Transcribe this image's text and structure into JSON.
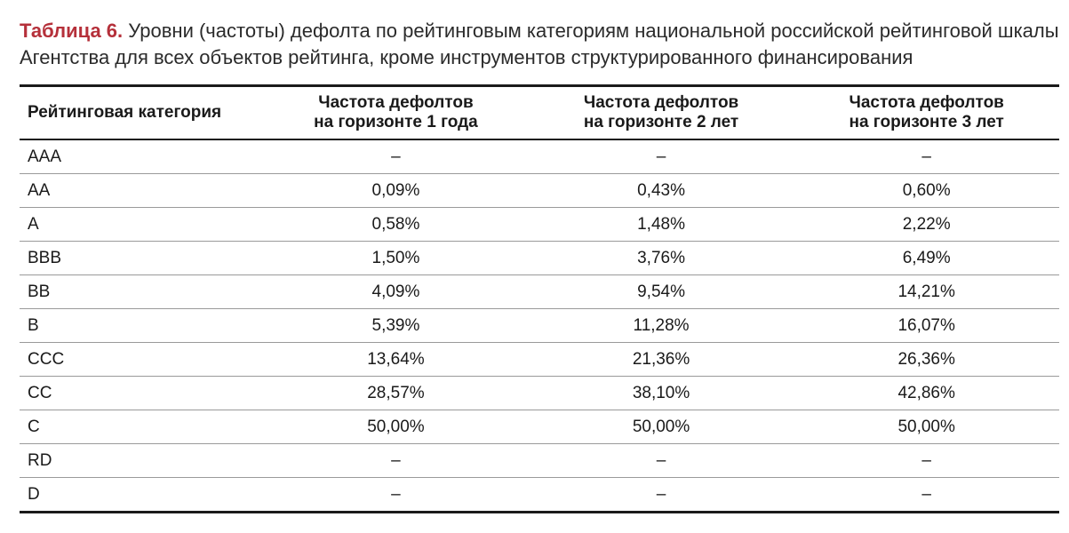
{
  "caption": {
    "label": "Таблица 6.",
    "text": " Уровни (частоты) дефолта по рейтинговым категориям национальной российской рейтинговой шкалы Агентства для всех объектов рейтинга, кроме инструментов структурированного финансирования"
  },
  "table": {
    "headers": {
      "category": "Рейтинговая категория",
      "h1_line1": "Частота дефолтов",
      "h1_line2": "на горизонте 1 года",
      "h2_line1": "Частота дефолтов",
      "h2_line2": "на горизонте 2 лет",
      "h3_line1": "Частота дефолтов",
      "h3_line2": "на горизонте 3 лет"
    },
    "rows": [
      {
        "category": "AAA",
        "y1": "–",
        "y2": "–",
        "y3": "–"
      },
      {
        "category": "AA",
        "y1": "0,09%",
        "y2": "0,43%",
        "y3": "0,60%"
      },
      {
        "category": "A",
        "y1": "0,58%",
        "y2": "1,48%",
        "y3": "2,22%"
      },
      {
        "category": "BBB",
        "y1": "1,50%",
        "y2": "3,76%",
        "y3": "6,49%"
      },
      {
        "category": "BB",
        "y1": "4,09%",
        "y2": "9,54%",
        "y3": "14,21%"
      },
      {
        "category": "B",
        "y1": "5,39%",
        "y2": "11,28%",
        "y3": "16,07%"
      },
      {
        "category": "CCC",
        "y1": "13,64%",
        "y2": "21,36%",
        "y3": "26,36%"
      },
      {
        "category": "CC",
        "y1": "28,57%",
        "y2": "38,10%",
        "y3": "42,86%"
      },
      {
        "category": "C",
        "y1": "50,00%",
        "y2": "50,00%",
        "y3": "50,00%"
      },
      {
        "category": "RD",
        "y1": "–",
        "y2": "–",
        "y3": "–"
      },
      {
        "category": "D",
        "y1": "–",
        "y2": "–",
        "y3": "–"
      }
    ]
  }
}
